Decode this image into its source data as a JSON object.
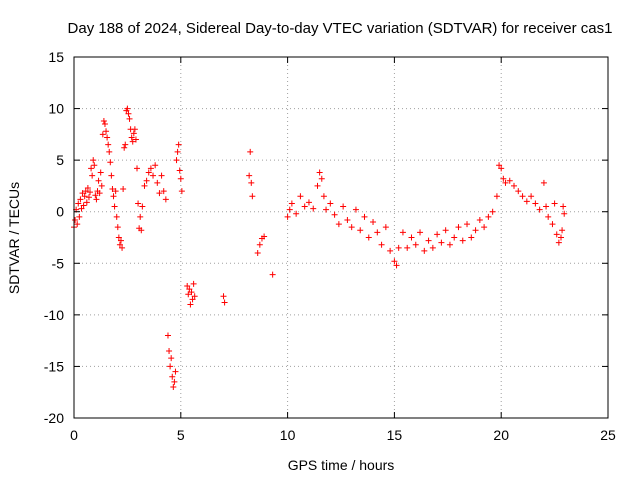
{
  "chart_data": {
    "type": "scatter",
    "title": "Day 188 of 2024, Sidereal Day-to-day VTEC variation (SDTVAR) for receiver cas1",
    "xlabel": "GPS time / hours",
    "ylabel": "SDTVAR / TECUs",
    "xlim": [
      0,
      25
    ],
    "ylim": [
      -20,
      15
    ],
    "xticks": [
      0,
      5,
      10,
      15,
      20,
      25
    ],
    "yticks": [
      -20,
      -15,
      -10,
      -5,
      0,
      5,
      10,
      15
    ],
    "grid": true,
    "marker": "+",
    "color": "#ff0000",
    "series": [
      {
        "name": "SDTVAR",
        "points": [
          [
            0.0,
            -1.5
          ],
          [
            0.05,
            -0.8
          ],
          [
            0.1,
            0.2
          ],
          [
            0.15,
            -1.2
          ],
          [
            0.2,
            0.8
          ],
          [
            0.25,
            -0.5
          ],
          [
            0.3,
            1.2
          ],
          [
            0.35,
            0.3
          ],
          [
            0.4,
            1.8
          ],
          [
            0.45,
            0.6
          ],
          [
            0.5,
            1.5
          ],
          [
            0.55,
            2.0
          ],
          [
            0.6,
            0.9
          ],
          [
            0.65,
            2.3
          ],
          [
            0.7,
            1.4
          ],
          [
            0.75,
            1.9
          ],
          [
            0.8,
            4.2
          ],
          [
            0.85,
            3.5
          ],
          [
            0.9,
            5.0
          ],
          [
            0.95,
            4.5
          ],
          [
            1.0,
            1.6
          ],
          [
            1.05,
            1.2
          ],
          [
            1.1,
            2.0
          ],
          [
            1.15,
            3.0
          ],
          [
            1.2,
            1.8
          ],
          [
            1.25,
            3.8
          ],
          [
            1.3,
            2.5
          ],
          [
            1.35,
            7.5
          ],
          [
            1.4,
            8.8
          ],
          [
            1.45,
            8.5
          ],
          [
            1.5,
            7.8
          ],
          [
            1.55,
            7.2
          ],
          [
            1.6,
            6.5
          ],
          [
            1.65,
            5.8
          ],
          [
            1.7,
            4.8
          ],
          [
            1.75,
            3.5
          ],
          [
            1.8,
            2.2
          ],
          [
            1.85,
            1.5
          ],
          [
            1.9,
            0.5
          ],
          [
            1.95,
            2.0
          ],
          [
            2.0,
            -0.5
          ],
          [
            2.05,
            -1.5
          ],
          [
            2.1,
            -2.5
          ],
          [
            2.15,
            -3.2
          ],
          [
            2.2,
            -2.8
          ],
          [
            2.25,
            -3.5
          ],
          [
            2.3,
            2.2
          ],
          [
            2.35,
            6.2
          ],
          [
            2.4,
            6.5
          ],
          [
            2.45,
            9.8
          ],
          [
            2.5,
            10.0
          ],
          [
            2.55,
            9.5
          ],
          [
            2.6,
            9.0
          ],
          [
            2.65,
            8.0
          ],
          [
            2.7,
            7.2
          ],
          [
            2.75,
            6.8
          ],
          [
            2.8,
            7.6
          ],
          [
            2.85,
            8.0
          ],
          [
            2.9,
            7.0
          ],
          [
            2.95,
            4.2
          ],
          [
            3.0,
            0.8
          ],
          [
            3.05,
            -1.6
          ],
          [
            3.1,
            -0.5
          ],
          [
            3.15,
            -1.8
          ],
          [
            3.2,
            0.5
          ],
          [
            3.3,
            2.5
          ],
          [
            3.4,
            3.0
          ],
          [
            3.5,
            3.8
          ],
          [
            3.6,
            4.2
          ],
          [
            3.7,
            3.5
          ],
          [
            3.8,
            4.5
          ],
          [
            3.9,
            2.8
          ],
          [
            4.0,
            1.8
          ],
          [
            4.1,
            3.5
          ],
          [
            4.2,
            2.0
          ],
          [
            4.3,
            1.2
          ],
          [
            4.4,
            -12.0
          ],
          [
            4.45,
            -13.5
          ],
          [
            4.5,
            -15.0
          ],
          [
            4.55,
            -14.2
          ],
          [
            4.6,
            -16.0
          ],
          [
            4.65,
            -17.0
          ],
          [
            4.7,
            -16.5
          ],
          [
            4.75,
            -15.5
          ],
          [
            4.8,
            5.0
          ],
          [
            4.85,
            5.8
          ],
          [
            4.9,
            6.5
          ],
          [
            4.95,
            4.0
          ],
          [
            5.0,
            3.2
          ],
          [
            5.05,
            2.0
          ],
          [
            5.3,
            -7.2
          ],
          [
            5.35,
            -8.0
          ],
          [
            5.4,
            -7.5
          ],
          [
            5.45,
            -9.0
          ],
          [
            5.5,
            -7.8
          ],
          [
            5.55,
            -8.5
          ],
          [
            5.6,
            -7.0
          ],
          [
            5.65,
            -8.2
          ],
          [
            7.0,
            -8.2
          ],
          [
            7.05,
            -8.8
          ],
          [
            8.2,
            3.5
          ],
          [
            8.25,
            5.8
          ],
          [
            8.3,
            2.8
          ],
          [
            8.35,
            1.5
          ],
          [
            8.6,
            -4.0
          ],
          [
            8.7,
            -3.2
          ],
          [
            8.8,
            -2.6
          ],
          [
            8.9,
            -2.4
          ],
          [
            9.3,
            -6.1
          ],
          [
            10.0,
            -0.5
          ],
          [
            10.1,
            0.2
          ],
          [
            10.2,
            0.8
          ],
          [
            10.4,
            -0.2
          ],
          [
            10.6,
            1.5
          ],
          [
            10.8,
            0.5
          ],
          [
            11.0,
            0.9
          ],
          [
            11.2,
            0.3
          ],
          [
            11.4,
            2.5
          ],
          [
            11.5,
            3.8
          ],
          [
            11.6,
            3.2
          ],
          [
            11.7,
            1.5
          ],
          [
            11.8,
            0.2
          ],
          [
            12.0,
            0.8
          ],
          [
            12.2,
            -0.3
          ],
          [
            12.4,
            -1.2
          ],
          [
            12.6,
            0.5
          ],
          [
            12.8,
            -0.8
          ],
          [
            13.0,
            -1.5
          ],
          [
            13.2,
            0.2
          ],
          [
            13.4,
            -1.8
          ],
          [
            13.6,
            -0.5
          ],
          [
            13.8,
            -2.5
          ],
          [
            14.0,
            -1.0
          ],
          [
            14.2,
            -2.0
          ],
          [
            14.4,
            -3.2
          ],
          [
            14.6,
            -1.5
          ],
          [
            14.8,
            -3.8
          ],
          [
            15.0,
            -4.8
          ],
          [
            15.1,
            -5.2
          ],
          [
            15.2,
            -3.5
          ],
          [
            15.4,
            -2.0
          ],
          [
            15.6,
            -3.5
          ],
          [
            15.8,
            -2.5
          ],
          [
            16.0,
            -3.2
          ],
          [
            16.2,
            -2.0
          ],
          [
            16.4,
            -3.8
          ],
          [
            16.6,
            -2.8
          ],
          [
            16.8,
            -3.5
          ],
          [
            17.0,
            -2.2
          ],
          [
            17.2,
            -3.0
          ],
          [
            17.4,
            -1.8
          ],
          [
            17.6,
            -3.2
          ],
          [
            17.8,
            -2.5
          ],
          [
            18.0,
            -1.5
          ],
          [
            18.2,
            -2.8
          ],
          [
            18.4,
            -1.2
          ],
          [
            18.6,
            -2.5
          ],
          [
            18.8,
            -1.8
          ],
          [
            19.0,
            -0.8
          ],
          [
            19.2,
            -1.5
          ],
          [
            19.4,
            -0.5
          ],
          [
            19.6,
            0.0
          ],
          [
            19.8,
            1.5
          ],
          [
            19.9,
            4.5
          ],
          [
            20.0,
            4.2
          ],
          [
            20.1,
            3.2
          ],
          [
            20.2,
            2.8
          ],
          [
            20.4,
            3.0
          ],
          [
            20.6,
            2.5
          ],
          [
            20.8,
            2.0
          ],
          [
            21.0,
            1.5
          ],
          [
            21.2,
            1.0
          ],
          [
            21.4,
            1.5
          ],
          [
            21.6,
            0.8
          ],
          [
            21.8,
            0.2
          ],
          [
            22.0,
            2.8
          ],
          [
            22.1,
            0.5
          ],
          [
            22.2,
            -0.5
          ],
          [
            22.4,
            -1.2
          ],
          [
            22.5,
            0.8
          ],
          [
            22.6,
            -2.2
          ],
          [
            22.7,
            -3.0
          ],
          [
            22.8,
            -2.5
          ],
          [
            22.85,
            -1.8
          ],
          [
            22.9,
            0.5
          ],
          [
            22.95,
            -0.2
          ]
        ]
      }
    ]
  }
}
